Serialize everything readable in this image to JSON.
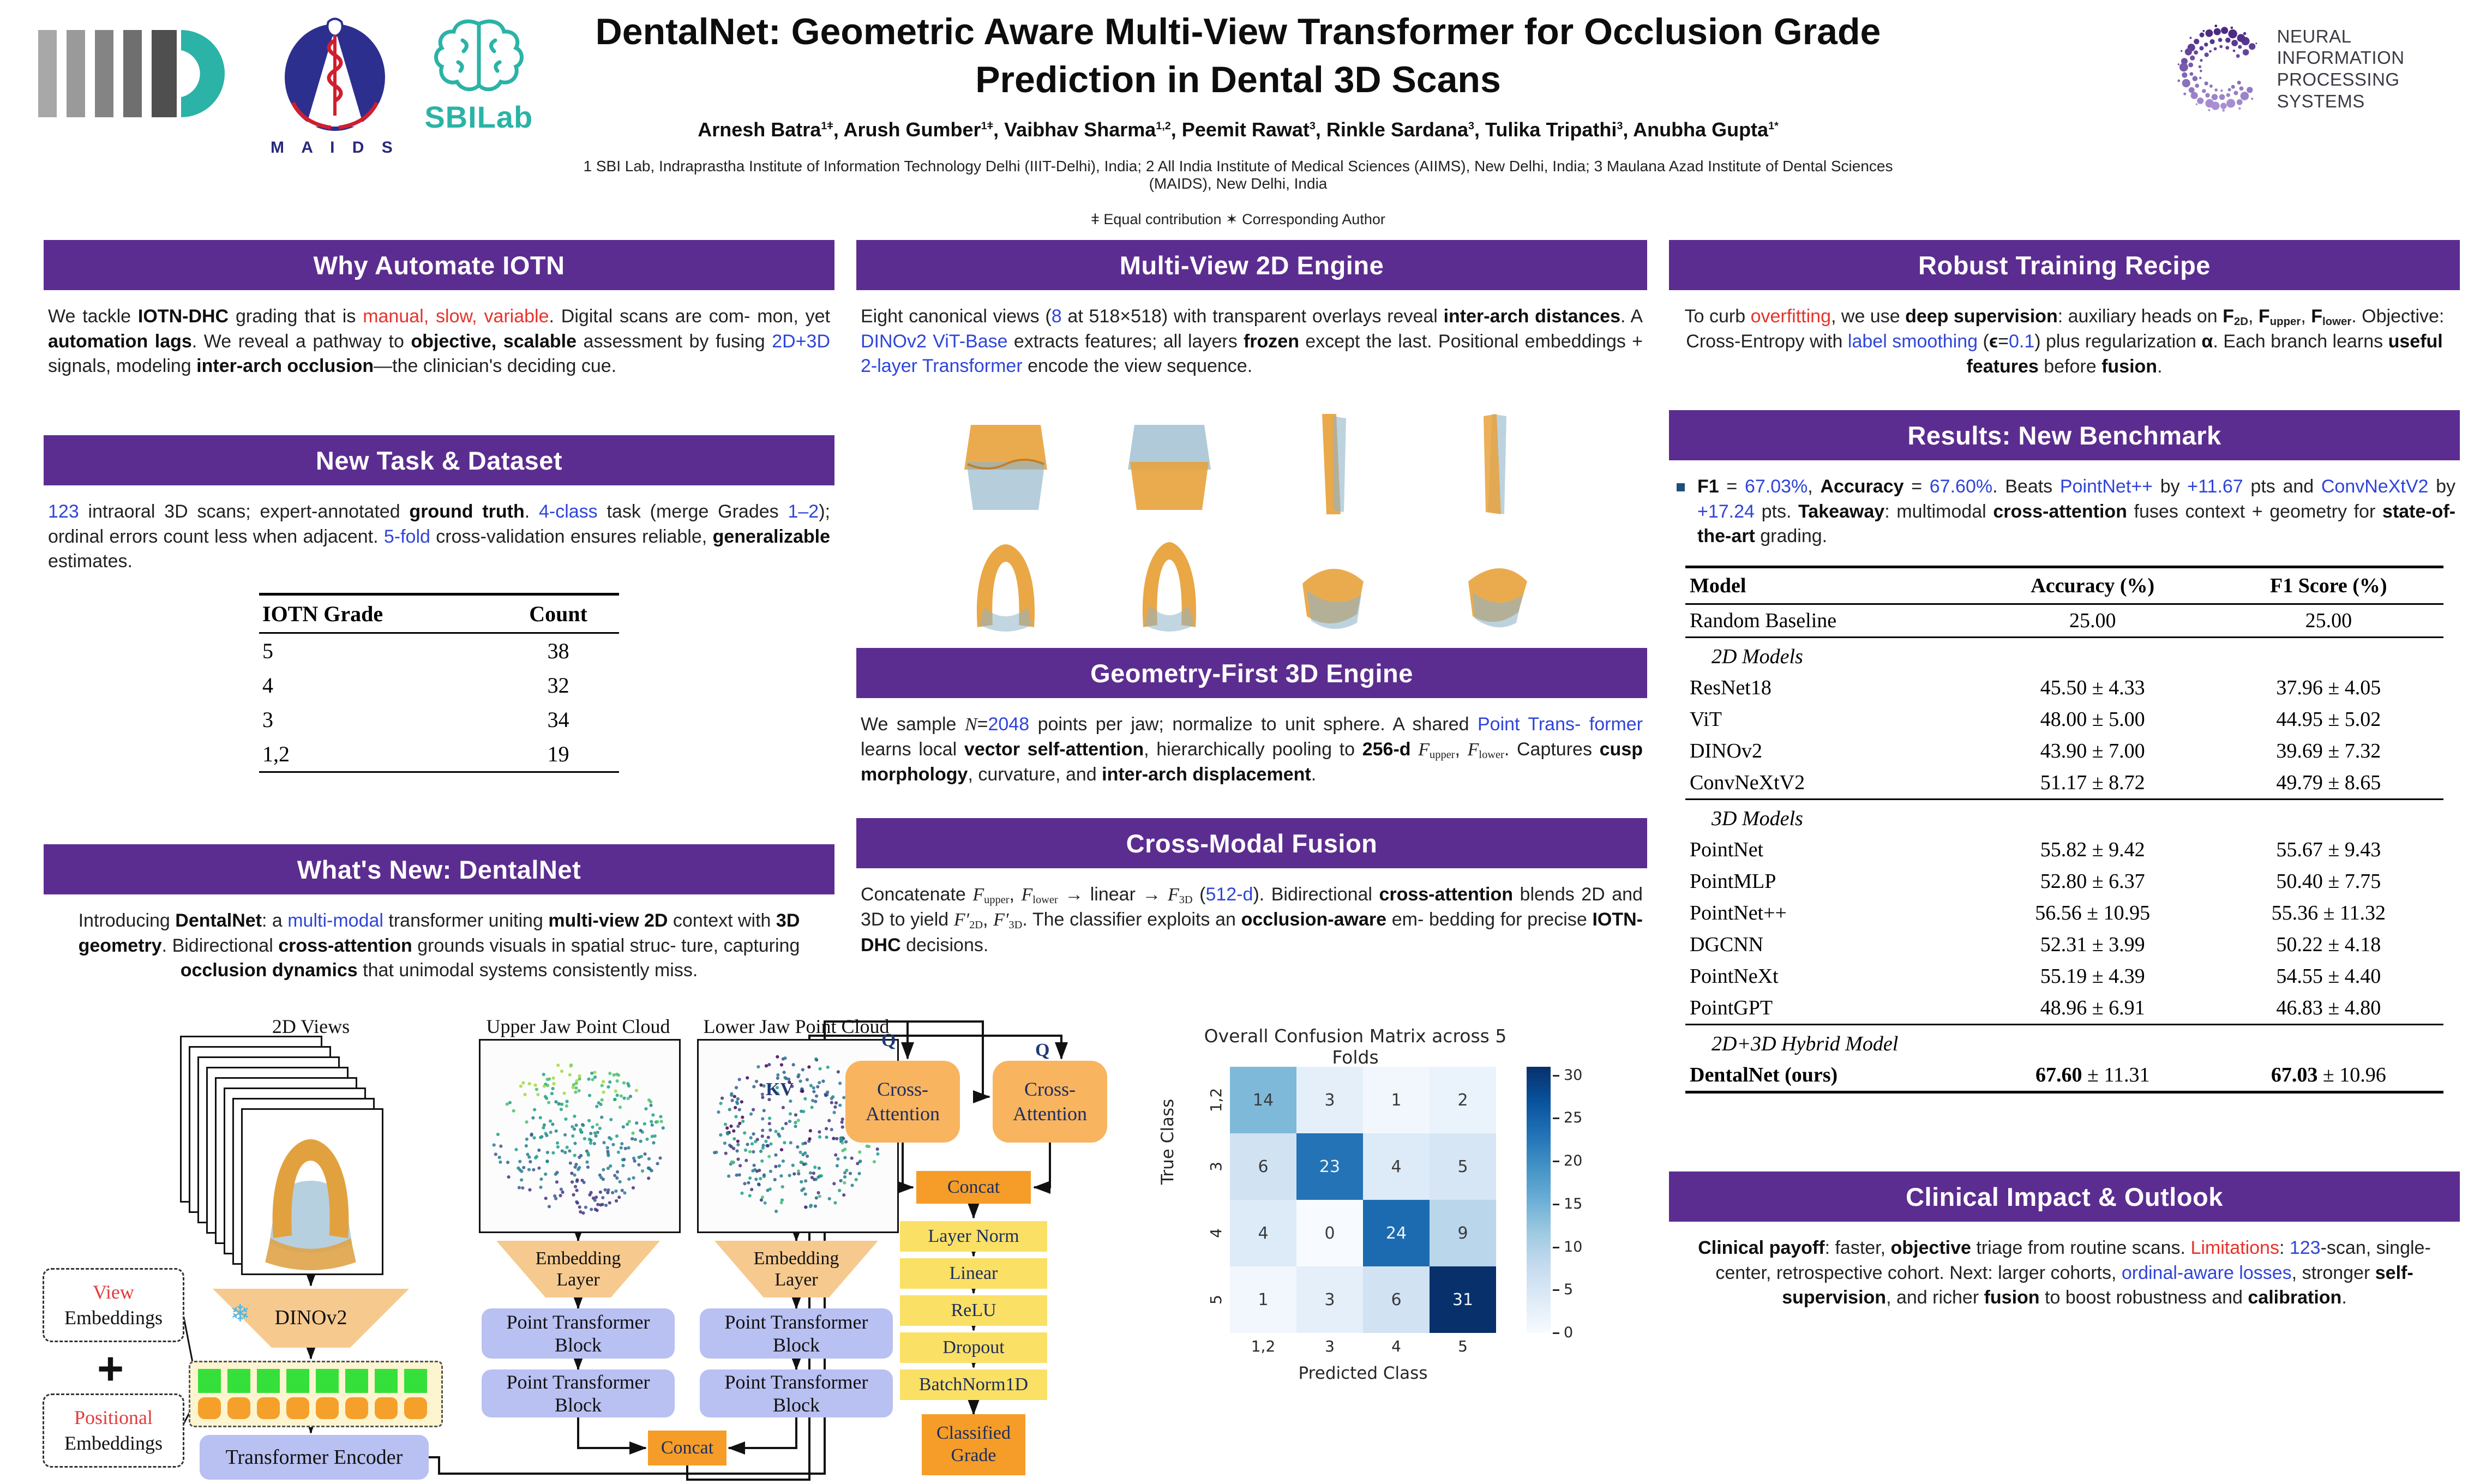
{
  "palette": {
    "accent": "#5C2D90",
    "link_blue": "#2F45D8",
    "alert_red": "#E8322A",
    "teal": "#2AB3A6",
    "diagram_orange": "#F59D28",
    "diagram_tan": "#F6C98F",
    "diagram_yellow": "#FBE066",
    "diagram_blue": "#B9C0F2",
    "token_green": "#35E03A",
    "navy": "#1C2D5E"
  },
  "header": {
    "title_line1": "DentalNet: Geometric Aware Multi-View Transformer for Occlusion Grade",
    "title_line2": "Prediction in Dental 3D Scans",
    "authors": [
      [
        "Arnesh Batra",
        "b"
      ],
      [
        "1ǂ",
        "sup"
      ],
      [
        ", Arush Gumber",
        "b"
      ],
      [
        "1ǂ",
        "sup"
      ],
      [
        ", Vaibhav Sharma",
        "b"
      ],
      [
        "1,2",
        "sup"
      ],
      [
        ", Peemit Rawat",
        "b"
      ],
      [
        "3",
        "sup"
      ],
      [
        ", Rinkle Sardana",
        "b"
      ],
      [
        "3",
        "sup"
      ],
      [
        ", Tulika Tripathi",
        "b"
      ],
      [
        "3",
        "sup"
      ],
      [
        ", Anubha Gupta",
        "b"
      ],
      [
        "1*",
        "sup"
      ]
    ],
    "affiliations": "1 SBI Lab, Indraprastha Institute of Information Technology Delhi (IIIT-Delhi), India; 2 All India Institute of Medical Sciences (AIIMS), New Delhi, India; 3 Maulana Azad Institute of Dental Sciences (MAIDS), New Delhi, India",
    "footnote": "ǂ Equal contribution  ✶ Corresponding Author",
    "logos": {
      "maids": "M A I D S",
      "sbilab": "SBILab",
      "neurips_line1": "NEURAL INFORMATION",
      "neurips_line2": "PROCESSING SYSTEMS"
    }
  },
  "left": {
    "p1": {
      "title": "Why Automate IOTN",
      "body": [
        [
          "We tackle ",
          "p"
        ],
        [
          "IOTN-DHC",
          "b"
        ],
        [
          " grading that is ",
          "p"
        ],
        [
          "manual, slow, variable",
          "r"
        ],
        [
          ". Digital scans are com- mon, yet ",
          "p"
        ],
        [
          "automation lags",
          "b"
        ],
        [
          ". We reveal a pathway to ",
          "p"
        ],
        [
          "objective, scalable",
          "b"
        ],
        [
          " assessment by fusing ",
          "p"
        ],
        [
          "2D+3D",
          "bl"
        ],
        [
          " signals, modeling ",
          "p"
        ],
        [
          "inter-arch occlusion",
          "b"
        ],
        [
          "—the clinician's deciding cue.",
          "p"
        ]
      ]
    },
    "p2": {
      "title": "New Task & Dataset",
      "body": [
        [
          "123",
          "bl"
        ],
        [
          " intraoral 3D scans; expert-annotated ",
          "p"
        ],
        [
          "ground truth",
          "b"
        ],
        [
          ". ",
          "p"
        ],
        [
          "4-class",
          "bl"
        ],
        [
          " task (merge Grades ",
          "p"
        ],
        [
          "1–2",
          "bl"
        ],
        [
          "); ordinal errors count less when adjacent. ",
          "p"
        ],
        [
          "5-fold",
          "bl"
        ],
        [
          " cross-validation ensures reliable, ",
          "p"
        ],
        [
          "generalizable",
          "b"
        ],
        [
          " estimates.",
          "p"
        ]
      ],
      "table": {
        "headers": [
          "IOTN Grade",
          "Count"
        ],
        "rows": [
          [
            "5",
            "38"
          ],
          [
            "4",
            "32"
          ],
          [
            "3",
            "34"
          ],
          [
            "1,2",
            "19"
          ]
        ]
      }
    },
    "p3": {
      "title": "What's New: DentalNet",
      "body": [
        [
          "Introducing ",
          "p"
        ],
        [
          "DentalNet",
          "b"
        ],
        [
          ": a ",
          "p"
        ],
        [
          "multi-modal",
          "bl"
        ],
        [
          " transformer uniting ",
          "p"
        ],
        [
          "multi-view 2D",
          "b"
        ],
        [
          " context with ",
          "p"
        ],
        [
          "3D geometry",
          "b"
        ],
        [
          ". Bidirectional ",
          "p"
        ],
        [
          "cross-attention",
          "b"
        ],
        [
          " grounds visuals in spatial struc- ture, capturing ",
          "p"
        ],
        [
          "occlusion dynamics",
          "b"
        ],
        [
          " that unimodal systems consistently miss.",
          "p"
        ]
      ]
    }
  },
  "mid": {
    "p1": {
      "title": "Multi-View 2D Engine",
      "body": [
        [
          "Eight canonical views (",
          "p"
        ],
        [
          "8",
          "bl"
        ],
        [
          " at 518×518) with transparent overlays reveal ",
          "p"
        ],
        [
          "inter-arch distances",
          "b"
        ],
        [
          ". A ",
          "p"
        ],
        [
          "DINOv2 ViT-Base",
          "bl"
        ],
        [
          " extracts features; all layers ",
          "p"
        ],
        [
          "frozen",
          "b"
        ],
        [
          " except the last. Positional embeddings + ",
          "p"
        ],
        [
          "2-layer Transformer",
          "bl"
        ],
        [
          " encode the view sequence.",
          "p"
        ]
      ]
    },
    "p2": {
      "title": "Geometry-First 3D Engine",
      "body": [
        [
          "We sample ",
          "p"
        ],
        [
          "N",
          "i"
        ],
        [
          "=",
          "p"
        ],
        [
          "2048",
          "bl"
        ],
        [
          " points per jaw; normalize to unit sphere. A shared ",
          "p"
        ],
        [
          "Point Trans- former",
          "bl"
        ],
        [
          " learns local ",
          "p"
        ],
        [
          "vector self-attention",
          "b"
        ],
        [
          ", hierarchically pooling to ",
          "p"
        ],
        [
          "256-d",
          "b"
        ],
        [
          " ",
          "p"
        ],
        [
          "F",
          "i"
        ],
        [
          "upper",
          "sub"
        ],
        [
          ", ",
          "p"
        ],
        [
          "F",
          "i"
        ],
        [
          "lower",
          "sub"
        ],
        [
          ". Captures ",
          "p"
        ],
        [
          "cusp morphology",
          "b"
        ],
        [
          ", curvature, and ",
          "p"
        ],
        [
          "inter-arch displacement",
          "b"
        ],
        [
          ".",
          "p"
        ]
      ]
    },
    "p3": {
      "title": "Cross-Modal Fusion",
      "body": [
        [
          "Concatenate ",
          "p"
        ],
        [
          "F",
          "i"
        ],
        [
          "upper",
          "sub"
        ],
        [
          ", ",
          "p"
        ],
        [
          "F",
          "i"
        ],
        [
          "lower",
          "sub"
        ],
        [
          " → linear → ",
          "p"
        ],
        [
          "F",
          "i"
        ],
        [
          "3D",
          "sub"
        ],
        [
          " (",
          "p"
        ],
        [
          "512-d",
          "bl"
        ],
        [
          "). Bidirectional ",
          "p"
        ],
        [
          "cross-attention",
          "b"
        ],
        [
          " blends 2D and 3D to yield ",
          "p"
        ],
        [
          "F′",
          "i"
        ],
        [
          "2D",
          "sub"
        ],
        [
          ", ",
          "p"
        ],
        [
          "F′",
          "i"
        ],
        [
          "3D",
          "sub"
        ],
        [
          ". The classifier exploits an ",
          "p"
        ],
        [
          "occlusion-aware",
          "b"
        ],
        [
          " em- bedding for precise ",
          "p"
        ],
        [
          "IOTN-DHC",
          "b"
        ],
        [
          " decisions.",
          "p"
        ]
      ]
    },
    "cm": {
      "title": "Overall Confusion Matrix across 5 Folds",
      "xlabel": "Predicted Class",
      "ylabel": "True Class",
      "classes": [
        "1,2",
        "3",
        "4",
        "5"
      ],
      "values": [
        [
          14,
          3,
          1,
          2
        ],
        [
          6,
          23,
          4,
          5
        ],
        [
          4,
          0,
          24,
          9
        ],
        [
          1,
          3,
          6,
          31
        ]
      ],
      "colorbar_ticks": [
        30,
        25,
        20,
        15,
        10,
        5,
        0
      ]
    }
  },
  "right": {
    "p1": {
      "title": "Robust Training Recipe",
      "body": [
        [
          "To curb ",
          "p"
        ],
        [
          "overfitting",
          "r"
        ],
        [
          ", we use ",
          "p"
        ],
        [
          "deep supervision",
          "b"
        ],
        [
          ": auxiliary heads on ",
          "p"
        ],
        [
          "F",
          "b"
        ],
        [
          "2D",
          "bsub"
        ],
        [
          ", ",
          "p"
        ],
        [
          "F",
          "b"
        ],
        [
          "upper",
          "bsub"
        ],
        [
          ", ",
          "p"
        ],
        [
          "F",
          "b"
        ],
        [
          "lower",
          "bsub"
        ],
        [
          ". Objective: Cross-Entropy with ",
          "p"
        ],
        [
          "label smoothing",
          "bl"
        ],
        [
          " (",
          "p"
        ],
        [
          "ϵ",
          "b"
        ],
        [
          "=",
          "p"
        ],
        [
          "0.1",
          "bl"
        ],
        [
          ") plus regularization ",
          "p"
        ],
        [
          "α",
          "b"
        ],
        [
          ". Each branch learns ",
          "p"
        ],
        [
          "useful features",
          "b"
        ],
        [
          " before ",
          "p"
        ],
        [
          "fusion",
          "b"
        ],
        [
          ".",
          "p"
        ]
      ]
    },
    "p2": {
      "title": "Results: New Benchmark",
      "bullet": [
        [
          "F1",
          "b"
        ],
        [
          " = ",
          "p"
        ],
        [
          "67.03%",
          "bl"
        ],
        [
          ", ",
          "p"
        ],
        [
          "Accuracy",
          "b"
        ],
        [
          " = ",
          "p"
        ],
        [
          "67.60%",
          "bl"
        ],
        [
          ". Beats ",
          "p"
        ],
        [
          "PointNet++",
          "bl"
        ],
        [
          " by ",
          "p"
        ],
        [
          "+11.67",
          "bl"
        ],
        [
          " pts and ",
          "p"
        ],
        [
          "ConvNeXtV2",
          "bl"
        ],
        [
          " by ",
          "p"
        ],
        [
          "+17.24",
          "bl"
        ],
        [
          " pts. ",
          "p"
        ],
        [
          "Takeaway",
          "b"
        ],
        [
          ": multimodal ",
          "p"
        ],
        [
          "cross-attention",
          "b"
        ],
        [
          " fuses context + geometry for ",
          "p"
        ],
        [
          "state-of-the-art",
          "b"
        ],
        [
          " grading.",
          "p"
        ]
      ],
      "table": {
        "headers": [
          "Model",
          "Accuracy (%)",
          "F1 Score (%)"
        ],
        "rows": [
          {
            "kind": "data",
            "model": "Random Baseline",
            "acc": "25.00",
            "f1": "25.00",
            "sep_after": true
          },
          {
            "kind": "group",
            "model": "2D Models"
          },
          {
            "kind": "data",
            "model": "ResNet18",
            "acc": "45.50 ± 4.33",
            "f1": "37.96 ± 4.05"
          },
          {
            "kind": "data",
            "model": "ViT",
            "acc": "48.00 ± 5.00",
            "f1": "44.95 ± 5.02"
          },
          {
            "kind": "data",
            "model": "DINOv2",
            "acc": "43.90 ± 7.00",
            "f1": "39.69 ± 7.32"
          },
          {
            "kind": "data",
            "model": "ConvNeXtV2",
            "acc": "51.17 ± 8.72",
            "f1": "49.79 ± 8.65",
            "sep_after": true
          },
          {
            "kind": "group",
            "model": "3D Models"
          },
          {
            "kind": "data",
            "model": "PointNet",
            "acc": "55.82 ± 9.42",
            "f1": "55.67 ± 9.43"
          },
          {
            "kind": "data",
            "model": "PointMLP",
            "acc": "52.80 ± 6.37",
            "f1": "50.40 ± 7.75"
          },
          {
            "kind": "data",
            "model": "PointNet++",
            "acc": "56.56 ± 10.95",
            "f1": "55.36 ± 11.32"
          },
          {
            "kind": "data",
            "model": "DGCNN",
            "acc": "52.31 ± 3.99",
            "f1": "50.22 ± 4.18"
          },
          {
            "kind": "data",
            "model": "PointNeXt",
            "acc": "55.19 ± 4.39",
            "f1": "54.55 ± 4.40"
          },
          {
            "kind": "data",
            "model": "PointGPT",
            "acc": "48.96 ± 6.91",
            "f1": "46.83 ± 4.80",
            "sep_after": true
          },
          {
            "kind": "group",
            "model": "2D+3D Hybrid Model"
          },
          {
            "kind": "final",
            "model": "DentalNet (ours)",
            "acc_bold": "67.60",
            "acc_rest": " ± 11.31",
            "f1_bold": "67.03",
            "f1_rest": " ± 10.96"
          }
        ]
      }
    },
    "p3": {
      "title": "Clinical Impact & Outlook",
      "body": [
        [
          "Clinical payoff",
          "b"
        ],
        [
          ": faster, ",
          "p"
        ],
        [
          "objective",
          "b"
        ],
        [
          " triage from routine scans. ",
          "p"
        ],
        [
          "Limitations",
          "r"
        ],
        [
          ": ",
          "p"
        ],
        [
          "123",
          "bl"
        ],
        [
          "-scan, single-center, retrospective cohort. Next: larger cohorts, ",
          "p"
        ],
        [
          "ordinal-aware losses",
          "bl"
        ],
        [
          ", stronger ",
          "p"
        ],
        [
          "self-supervision",
          "b"
        ],
        [
          ", and richer ",
          "p"
        ],
        [
          "fusion",
          "b"
        ],
        [
          " to boost robustness and ",
          "p"
        ],
        [
          "calibration",
          "b"
        ],
        [
          ".",
          "p"
        ]
      ]
    }
  },
  "diagram": {
    "views_label": "2D Views",
    "upper_label": "Upper Jaw Point Cloud",
    "lower_label": "Lower Jaw Point Cloud",
    "view_word": "View",
    "pos_word": "Positional",
    "embeddings_word": "Embeddings",
    "plus": "+",
    "snowflake": "❄",
    "dinov2": "DINOv2",
    "transformer_encoder": "Transformer Encoder",
    "embedding_l1": "Embedding",
    "embedding_l2": "Layer",
    "ptb": "Point Transformer Block",
    "concat": "Concat",
    "q": "Q",
    "kv": "KV",
    "ca_l1": "Cross-",
    "ca_l2": "Attention",
    "fusion_stack": [
      "Layer Norm",
      "Linear",
      "ReLU",
      "Dropout",
      "BatchNorm1D"
    ],
    "classified_l1": "Classified",
    "classified_l2": "Grade"
  },
  "chart_data": {
    "type": "heatmap",
    "title": "Overall Confusion Matrix across 5 Folds",
    "xlabel": "Predicted Class",
    "ylabel": "True Class",
    "categories": [
      "1,2",
      "3",
      "4",
      "5"
    ],
    "values": [
      [
        14,
        3,
        1,
        2
      ],
      [
        6,
        23,
        4,
        5
      ],
      [
        4,
        0,
        24,
        9
      ],
      [
        1,
        3,
        6,
        31
      ]
    ],
    "colorbar_range": [
      0,
      31
    ],
    "colormap": "Blues",
    "legend_position": "right",
    "grid": false
  }
}
